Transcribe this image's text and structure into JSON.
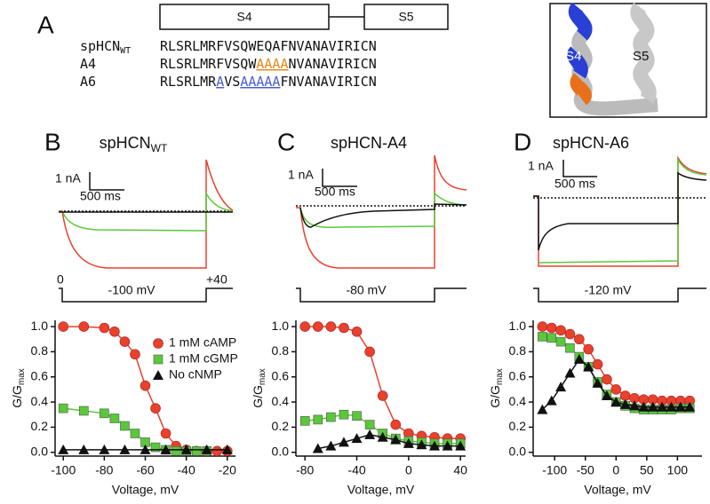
{
  "panel_a": {
    "letter": "A",
    "domains": [
      "S4",
      "S5"
    ],
    "rows": [
      {
        "name": "spHCN",
        "sub": "WT",
        "segments": [
          {
            "text": "RLSRLMRFVSQWEQAFNVANAVIRICN"
          }
        ]
      },
      {
        "name": "A4",
        "segments": [
          {
            "text": "RLSRLMRFVSQW"
          },
          {
            "text": "AAAA",
            "color": "#e08a1e"
          },
          {
            "text": "NVANAVIRICN"
          }
        ]
      },
      {
        "name": "A6",
        "segments": [
          {
            "text": "RLSRLMR"
          },
          {
            "text": "A",
            "color": "#4a5fd0"
          },
          {
            "text": "VS"
          },
          {
            "text": "AAAAA",
            "color": "#4a5fd0"
          },
          {
            "text": "FNVANAVIRICN"
          }
        ]
      }
    ],
    "structure_labels": [
      "S4",
      "S5"
    ]
  },
  "traces": [
    {
      "letter": "B",
      "current_scale": "1 nA",
      "time_scale": "500 ms",
      "holding": "0",
      "step": "-100 mV",
      "tail": "+40"
    },
    {
      "letter": "C",
      "current_scale": "1 nA",
      "time_scale": "500 ms",
      "step": "-80 mV"
    },
    {
      "letter": "D",
      "current_scale": "1 nA",
      "time_scale": "500 ms",
      "step": "-120 mV"
    }
  ],
  "chart_data": [
    {
      "type": "line",
      "title": "spHCN",
      "title_sub": "WT",
      "x_label": "Voltage, mV",
      "y_label": "G/G",
      "y_label_sub": "max",
      "xlim": [
        -104,
        -16
      ],
      "xticks": [
        -100,
        -80,
        -60,
        -40,
        -20
      ],
      "ylim": [
        -0.03,
        1.05
      ],
      "yticks": [
        {
          "value": 0,
          "label": "0.0"
        },
        0.2,
        0.4,
        0.6,
        0.8,
        {
          "value": 1,
          "label": "1.0"
        }
      ],
      "series": [
        {
          "name": "1 mM cAMP",
          "color": "#e8412c",
          "marker": "circle",
          "x": [
            -100,
            -90,
            -80,
            -75,
            -70,
            -65,
            -60,
            -55,
            -50,
            -45,
            -40,
            -35,
            -30,
            -25,
            -20
          ],
          "values": [
            1.0,
            1.0,
            0.99,
            0.96,
            0.88,
            0.78,
            0.53,
            0.35,
            0.15,
            0.05,
            0.02,
            0.01,
            0.01,
            0.01,
            0.01
          ]
        },
        {
          "name": "1 mM cGMP",
          "color": "#5ac83a",
          "marker": "square",
          "x": [
            -100,
            -90,
            -80,
            -75,
            -70,
            -65,
            -60,
            -55,
            -50,
            -45,
            -40,
            -35,
            -30
          ],
          "values": [
            0.35,
            0.33,
            0.31,
            0.27,
            0.21,
            0.15,
            0.08,
            0.04,
            0.02,
            0.01,
            0.01,
            0.01,
            0.01
          ]
        },
        {
          "name": "No cNMP",
          "color": "#111111",
          "marker": "triangle",
          "x": [
            -100,
            -90,
            -80,
            -70,
            -60,
            -50,
            -40,
            -30,
            -20
          ],
          "values": [
            0.02,
            0.02,
            0.02,
            0.02,
            0.02,
            0.02,
            0.02,
            0.02,
            0.02
          ]
        }
      ]
    },
    {
      "type": "line",
      "title": "spHCN-A4",
      "x_label": "Voltage, mV",
      "y_label": "G/G",
      "y_label_sub": "max",
      "xlim": [
        -87,
        44
      ],
      "xticks": [
        -80,
        -40,
        0,
        40
      ],
      "ylim": [
        -0.03,
        1.05
      ],
      "yticks": [
        {
          "value": 0,
          "label": "0.0"
        },
        0.2,
        0.4,
        0.6,
        0.8,
        {
          "value": 1,
          "label": "1.0"
        }
      ],
      "series": [
        {
          "name": "1 mM cAMP",
          "color": "#e8412c",
          "marker": "circle",
          "x": [
            -80,
            -70,
            -60,
            -50,
            -40,
            -30,
            -20,
            -10,
            0,
            10,
            20,
            30,
            40
          ],
          "values": [
            1.0,
            1.0,
            1.0,
            0.99,
            0.96,
            0.8,
            0.45,
            0.22,
            0.15,
            0.13,
            0.12,
            0.11,
            0.11
          ]
        },
        {
          "name": "1 mM cGMP",
          "color": "#5ac83a",
          "marker": "square",
          "x": [
            -80,
            -70,
            -60,
            -50,
            -40,
            -30,
            -20,
            -10,
            0,
            10,
            20,
            30,
            40
          ],
          "values": [
            0.25,
            0.26,
            0.28,
            0.3,
            0.29,
            0.22,
            0.15,
            0.11,
            0.09,
            0.08,
            0.07,
            0.07,
            0.07
          ]
        },
        {
          "name": "No cNMP",
          "color": "#111111",
          "marker": "triangle",
          "x": [
            -70,
            -60,
            -50,
            -40,
            -30,
            -20,
            -10,
            0,
            10,
            20,
            30,
            40
          ],
          "values": [
            0.03,
            0.05,
            0.08,
            0.11,
            0.14,
            0.12,
            0.1,
            0.07,
            0.06,
            0.05,
            0.05,
            0.05
          ]
        }
      ]
    },
    {
      "type": "line",
      "title": "spHCN-A6",
      "x_label": "Voltage, mV",
      "y_label": "G/G",
      "y_label_sub": "max",
      "xlim": [
        -135,
        140
      ],
      "xticks": [
        -100,
        -50,
        0,
        50,
        100
      ],
      "ylim": [
        -0.03,
        1.05
      ],
      "yticks": [
        {
          "value": 0,
          "label": "0.0"
        },
        0.2,
        0.4,
        0.6,
        0.8,
        {
          "value": 1,
          "label": "1.0"
        }
      ],
      "series": [
        {
          "name": "1 mM cAMP",
          "color": "#e8412c",
          "marker": "circle",
          "x": [
            -120,
            -105,
            -90,
            -75,
            -60,
            -45,
            -30,
            -15,
            0,
            15,
            30,
            45,
            60,
            75,
            90,
            105,
            120
          ],
          "values": [
            1.0,
            0.99,
            0.97,
            0.94,
            0.9,
            0.82,
            0.7,
            0.58,
            0.5,
            0.45,
            0.43,
            0.42,
            0.42,
            0.41,
            0.41,
            0.41,
            0.41
          ]
        },
        {
          "name": "1 mM cGMP",
          "color": "#5ac83a",
          "marker": "square",
          "x": [
            -120,
            -105,
            -90,
            -75,
            -60,
            -45,
            -30,
            -15,
            0,
            15,
            30,
            45,
            60,
            75,
            90,
            105,
            120
          ],
          "values": [
            0.92,
            0.91,
            0.88,
            0.83,
            0.76,
            0.68,
            0.56,
            0.46,
            0.4,
            0.37,
            0.35,
            0.34,
            0.34,
            0.34,
            0.34,
            0.35,
            0.35
          ]
        },
        {
          "name": "No cNMP",
          "color": "#111111",
          "marker": "triangle",
          "x": [
            -120,
            -105,
            -90,
            -75,
            -60,
            -45,
            -30,
            -15,
            0,
            15,
            30,
            45,
            60,
            75,
            90,
            105,
            120
          ],
          "values": [
            0.34,
            0.41,
            0.52,
            0.63,
            0.74,
            0.68,
            0.55,
            0.45,
            0.4,
            0.38,
            0.37,
            0.36,
            0.36,
            0.36,
            0.36,
            0.36,
            0.36
          ]
        }
      ]
    }
  ]
}
